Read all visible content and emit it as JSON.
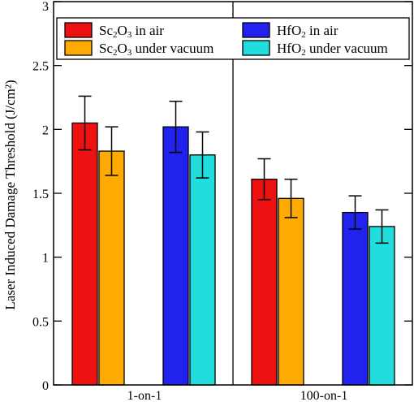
{
  "chart_data": {
    "type": "bar",
    "categories": [
      "1-on-1",
      "100-on-1"
    ],
    "series": [
      {
        "name": "Sc2O3 in air",
        "name_parts": [
          {
            "t": "Sc"
          },
          {
            "t": "2",
            "sub": true
          },
          {
            "t": "O"
          },
          {
            "t": "3",
            "sub": true
          },
          {
            "t": " in air"
          }
        ],
        "color": "#ee1111",
        "values": [
          2.05,
          1.61
        ],
        "errors": [
          0.21,
          0.16
        ]
      },
      {
        "name": "Sc2O3 under vacuum",
        "name_parts": [
          {
            "t": "Sc"
          },
          {
            "t": "2",
            "sub": true
          },
          {
            "t": "O"
          },
          {
            "t": "3",
            "sub": true
          },
          {
            "t": " under vacuum"
          }
        ],
        "color": "#ffaa00",
        "values": [
          1.83,
          1.46
        ],
        "errors": [
          0.19,
          0.15
        ]
      },
      {
        "name": "HfO2 in air",
        "name_parts": [
          {
            "t": "HfO"
          },
          {
            "t": "2",
            "sub": true
          },
          {
            "t": " in air"
          }
        ],
        "color": "#2222ee",
        "values": [
          2.02,
          1.35
        ],
        "errors": [
          0.2,
          0.13
        ]
      },
      {
        "name": "HfO2 under vacuum",
        "name_parts": [
          {
            "t": "HfO"
          },
          {
            "t": "2",
            "sub": true
          },
          {
            "t": " under vacuum"
          }
        ],
        "color": "#22dddd",
        "values": [
          1.8,
          1.24
        ],
        "errors": [
          0.18,
          0.13
        ]
      }
    ],
    "ylabel": "Laser Induced Damage Threshold (J/cm²)",
    "xlabel": "",
    "ylim": [
      0,
      3
    ],
    "yticks": [
      "0",
      "0.5",
      "1",
      "1.5",
      "2",
      "2.5",
      "3"
    ],
    "legend_position": "top",
    "grid": false,
    "error_bars": true
  }
}
